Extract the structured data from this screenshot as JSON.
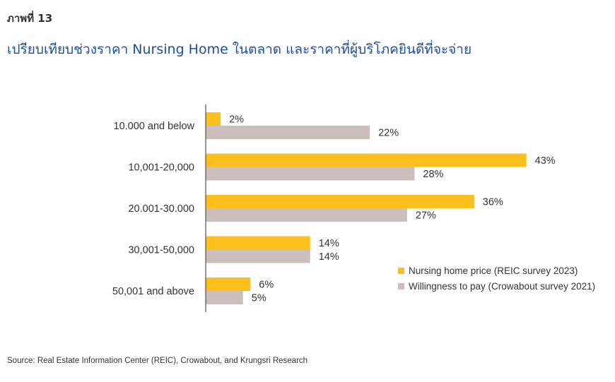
{
  "figure_label": "ภาพที่ 13",
  "title": "เปรียบเทียบช่วงราคา Nursing Home ในตลาด และราคาที่ผู้บริโภคยินดีที่จะจ่าย",
  "source": "Source: Real Estate Information Center (REIC), Crowabout, and Krungsri Research",
  "colors": {
    "series_1": "#fcbf1e",
    "series_2": "#cbbfbe",
    "axis": "#333333"
  },
  "chart_data": {
    "type": "bar",
    "orientation": "horizontal",
    "categories": [
      "10.000 and below",
      "10,001-20,000",
      "20.001-30.000",
      "30,001-50,000",
      "50,001 and above"
    ],
    "series": [
      {
        "name": "Nursing home price (REIC survey 2023)",
        "values": [
          2,
          43,
          36,
          14,
          6
        ],
        "labels": [
          "2%",
          "43%",
          "36%",
          "14%",
          "6%"
        ]
      },
      {
        "name": "Willingness to pay (Crowabout survey 2021)",
        "values": [
          22,
          28,
          27,
          14,
          5
        ],
        "labels": [
          "22%",
          "28%",
          "27%",
          "14%",
          "5%"
        ]
      }
    ],
    "unit": "%",
    "xlim": [
      0,
      50
    ],
    "grid": false,
    "legend_position": "right"
  }
}
